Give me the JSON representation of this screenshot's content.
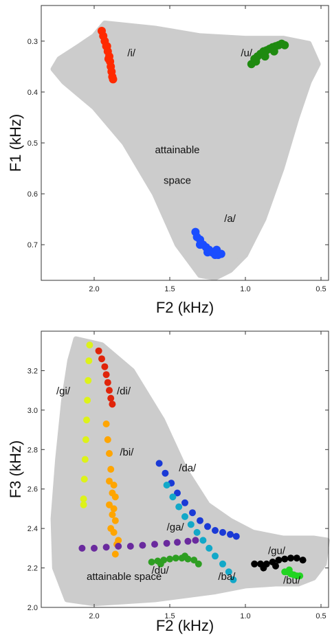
{
  "chart_data": [
    {
      "type": "scatter",
      "xlabel": "F2 (kHz)",
      "ylabel": "F1 (kHz)",
      "xlim": [
        2.35,
        0.45
      ],
      "ylim": [
        0.77,
        0.23
      ],
      "x_inverted": true,
      "y_inverted": true,
      "x_ticks": [
        "2.0",
        "1.5",
        "1.0",
        "0.5"
      ],
      "x_tick_values": [
        2.0,
        1.5,
        1.0,
        0.5
      ],
      "y_ticks": [
        "0.3",
        "0.4",
        "0.5",
        "0.6",
        "0.7"
      ],
      "y_tick_values": [
        0.3,
        0.4,
        0.5,
        0.6,
        0.7
      ],
      "grid": false,
      "region": {
        "label": "attainable space",
        "label_lines": [
          "attainable",
          "space"
        ],
        "color": "#cccccc",
        "outline": [
          [
            1.93,
            0.265
          ],
          [
            1.6,
            0.275
          ],
          [
            1.3,
            0.29
          ],
          [
            1.0,
            0.295
          ],
          [
            0.75,
            0.295
          ],
          [
            0.58,
            0.305
          ],
          [
            0.52,
            0.345
          ],
          [
            0.58,
            0.38
          ],
          [
            0.66,
            0.45
          ],
          [
            0.76,
            0.55
          ],
          [
            0.88,
            0.65
          ],
          [
            1.0,
            0.72
          ],
          [
            1.1,
            0.75
          ],
          [
            1.2,
            0.765
          ],
          [
            1.3,
            0.76
          ],
          [
            1.45,
            0.7
          ],
          [
            1.6,
            0.6
          ],
          [
            1.8,
            0.5
          ],
          [
            2.0,
            0.43
          ],
          [
            2.2,
            0.38
          ],
          [
            2.27,
            0.355
          ],
          [
            2.23,
            0.335
          ],
          [
            2.1,
            0.31
          ],
          [
            2.0,
            0.29
          ]
        ]
      },
      "series": [
        {
          "name": "/i/",
          "color": "#ff2a00",
          "points": [
            [
              1.95,
              0.28
            ],
            [
              1.94,
              0.29
            ],
            [
              1.93,
              0.3
            ],
            [
              1.92,
              0.31
            ],
            [
              1.91,
              0.32
            ],
            [
              1.9,
              0.33
            ],
            [
              1.895,
              0.34
            ],
            [
              1.89,
              0.35
            ],
            [
              1.885,
              0.36
            ],
            [
              1.88,
              0.37
            ],
            [
              1.875,
              0.375
            ],
            [
              1.915,
              0.31
            ],
            [
              1.905,
              0.335
            ]
          ]
        },
        {
          "name": "/u/",
          "color": "#1f8a10",
          "points": [
            [
              0.96,
              0.345
            ],
            [
              0.94,
              0.335
            ],
            [
              0.92,
              0.33
            ],
            [
              0.9,
              0.325
            ],
            [
              0.88,
              0.32
            ],
            [
              0.86,
              0.318
            ],
            [
              0.84,
              0.315
            ],
            [
              0.82,
              0.312
            ],
            [
              0.8,
              0.31
            ],
            [
              0.78,
              0.308
            ],
            [
              0.76,
              0.305
            ],
            [
              0.74,
              0.308
            ],
            [
              0.93,
              0.34
            ],
            [
              0.87,
              0.33
            ],
            [
              0.81,
              0.32
            ]
          ]
        },
        {
          "name": "/a/",
          "color": "#1a4dff",
          "points": [
            [
              1.33,
              0.675
            ],
            [
              1.32,
              0.685
            ],
            [
              1.3,
              0.69
            ],
            [
              1.28,
              0.7
            ],
            [
              1.26,
              0.705
            ],
            [
              1.24,
              0.71
            ],
            [
              1.22,
              0.715
            ],
            [
              1.2,
              0.72
            ],
            [
              1.18,
              0.72
            ],
            [
              1.16,
              0.718
            ],
            [
              1.3,
              0.7
            ],
            [
              1.25,
              0.715
            ],
            [
              1.19,
              0.71
            ]
          ]
        }
      ]
    },
    {
      "type": "scatter",
      "xlabel": "F2 (kHz)",
      "ylabel": "F3 (kHz)",
      "xlim": [
        2.35,
        0.45
      ],
      "ylim": [
        2.0,
        3.4
      ],
      "x_inverted": true,
      "x_ticks": [
        "2.0",
        "1.5",
        "1.0",
        "0.5"
      ],
      "x_tick_values": [
        2.0,
        1.5,
        1.0,
        0.5
      ],
      "y_ticks": [
        "2.0",
        "2.2",
        "2.4",
        "2.6",
        "2.8",
        "3.0",
        "3.2"
      ],
      "y_tick_values": [
        2.0,
        2.2,
        2.4,
        2.6,
        2.8,
        3.0,
        3.2
      ],
      "grid": false,
      "region": {
        "label": "attainable space",
        "label_lines": [
          "attainable space"
        ],
        "color": "#cccccc",
        "outline": [
          [
            2.12,
            3.36
          ],
          [
            1.95,
            3.33
          ],
          [
            1.75,
            3.2
          ],
          [
            1.55,
            2.95
          ],
          [
            1.4,
            2.7
          ],
          [
            1.25,
            2.52
          ],
          [
            1.1,
            2.44
          ],
          [
            0.95,
            2.38
          ],
          [
            0.75,
            2.35
          ],
          [
            0.55,
            2.35
          ],
          [
            0.46,
            2.34
          ],
          [
            0.48,
            2.22
          ],
          [
            0.55,
            2.15
          ],
          [
            0.65,
            2.12
          ],
          [
            0.8,
            2.12
          ],
          [
            1.0,
            2.11
          ],
          [
            1.2,
            2.08
          ],
          [
            1.4,
            2.06
          ],
          [
            1.6,
            2.04
          ],
          [
            1.8,
            2.03
          ],
          [
            2.0,
            2.02
          ],
          [
            2.18,
            2.04
          ],
          [
            2.26,
            2.2
          ],
          [
            2.27,
            2.45
          ],
          [
            2.24,
            2.75
          ],
          [
            2.2,
            3.05
          ],
          [
            2.16,
            3.25
          ]
        ]
      },
      "series": [
        {
          "name": "/gi/",
          "color": "#ddf21a",
          "points": [
            [
              2.03,
              3.33
            ],
            [
              2.035,
              3.25
            ],
            [
              2.04,
              3.15
            ],
            [
              2.045,
              3.05
            ],
            [
              2.05,
              2.95
            ],
            [
              2.055,
              2.85
            ],
            [
              2.06,
              2.75
            ],
            [
              2.065,
              2.65
            ],
            [
              2.07,
              2.55
            ],
            [
              2.07,
              2.52
            ]
          ]
        },
        {
          "name": "/di/",
          "color": "#e0240a",
          "points": [
            [
              1.97,
              3.3
            ],
            [
              1.95,
              3.26
            ],
            [
              1.93,
              3.22
            ],
            [
              1.92,
              3.18
            ],
            [
              1.91,
              3.14
            ],
            [
              1.9,
              3.1
            ],
            [
              1.89,
              3.06
            ],
            [
              1.88,
              3.03
            ]
          ]
        },
        {
          "name": "/bi/",
          "color": "#ffa500",
          "points": [
            [
              1.92,
              2.93
            ],
            [
              1.91,
              2.85
            ],
            [
              1.9,
              2.78
            ],
            [
              1.89,
              2.7
            ],
            [
              1.9,
              2.64
            ],
            [
              1.88,
              2.58
            ],
            [
              1.87,
              2.5
            ],
            [
              1.86,
              2.44
            ],
            [
              1.87,
              2.38
            ],
            [
              1.85,
              2.32
            ],
            [
              1.86,
              2.27
            ],
            [
              1.87,
              2.62
            ],
            [
              1.88,
              2.47
            ],
            [
              1.86,
              2.56
            ],
            [
              1.89,
              2.4
            ],
            [
              1.84,
              2.34
            ],
            [
              1.9,
              2.52
            ]
          ]
        },
        {
          "name": "/da/",
          "color": "#1a3ad6",
          "points": [
            [
              1.57,
              2.73
            ],
            [
              1.53,
              2.68
            ],
            [
              1.49,
              2.63
            ],
            [
              1.45,
              2.58
            ],
            [
              1.4,
              2.53
            ],
            [
              1.35,
              2.48
            ],
            [
              1.3,
              2.44
            ],
            [
              1.25,
              2.41
            ],
            [
              1.2,
              2.39
            ],
            [
              1.15,
              2.38
            ],
            [
              1.1,
              2.37
            ],
            [
              1.06,
              2.36
            ]
          ]
        },
        {
          "name": "/ba/",
          "color": "#12a8c8",
          "points": [
            [
              1.52,
              2.62
            ],
            [
              1.48,
              2.56
            ],
            [
              1.44,
              2.51
            ],
            [
              1.4,
              2.46
            ],
            [
              1.36,
              2.42
            ],
            [
              1.32,
              2.38
            ],
            [
              1.28,
              2.34
            ],
            [
              1.24,
              2.3
            ],
            [
              1.2,
              2.26
            ],
            [
              1.15,
              2.22
            ],
            [
              1.11,
              2.18
            ],
            [
              1.08,
              2.14
            ]
          ]
        },
        {
          "name": "/ga/",
          "color": "#6a2a9e",
          "points": [
            [
              2.08,
              2.3
            ],
            [
              2.0,
              2.3
            ],
            [
              1.92,
              2.305
            ],
            [
              1.84,
              2.31
            ],
            [
              1.76,
              2.31
            ],
            [
              1.68,
              2.315
            ],
            [
              1.6,
              2.32
            ],
            [
              1.52,
              2.325
            ],
            [
              1.45,
              2.33
            ],
            [
              1.38,
              2.335
            ],
            [
              1.33,
              2.34
            ]
          ]
        },
        {
          "name": "/du/",
          "color": "#2e9e22",
          "points": [
            [
              1.62,
              2.23
            ],
            [
              1.58,
              2.235
            ],
            [
              1.54,
              2.24
            ],
            [
              1.5,
              2.245
            ],
            [
              1.46,
              2.25
            ],
            [
              1.42,
              2.25
            ],
            [
              1.38,
              2.245
            ],
            [
              1.34,
              2.24
            ],
            [
              1.31,
              2.22
            ],
            [
              1.4,
              2.26
            ],
            [
              1.56,
              2.22
            ]
          ]
        },
        {
          "name": "/gu/",
          "color": "#000000",
          "points": [
            [
              0.94,
              2.22
            ],
            [
              0.9,
              2.22
            ],
            [
              0.86,
              2.22
            ],
            [
              0.82,
              2.23
            ],
            [
              0.78,
              2.24
            ],
            [
              0.74,
              2.245
            ],
            [
              0.7,
              2.25
            ],
            [
              0.66,
              2.25
            ],
            [
              0.62,
              2.24
            ],
            [
              0.88,
              2.2
            ],
            [
              0.8,
              2.21
            ]
          ]
        },
        {
          "name": "/bu/",
          "color": "#22d422",
          "points": [
            [
              0.74,
              2.18
            ],
            [
              0.72,
              2.18
            ],
            [
              0.7,
              2.17
            ],
            [
              0.68,
              2.165
            ],
            [
              0.66,
              2.16
            ],
            [
              0.64,
              2.16
            ],
            [
              0.71,
              2.19
            ]
          ]
        }
      ]
    }
  ]
}
